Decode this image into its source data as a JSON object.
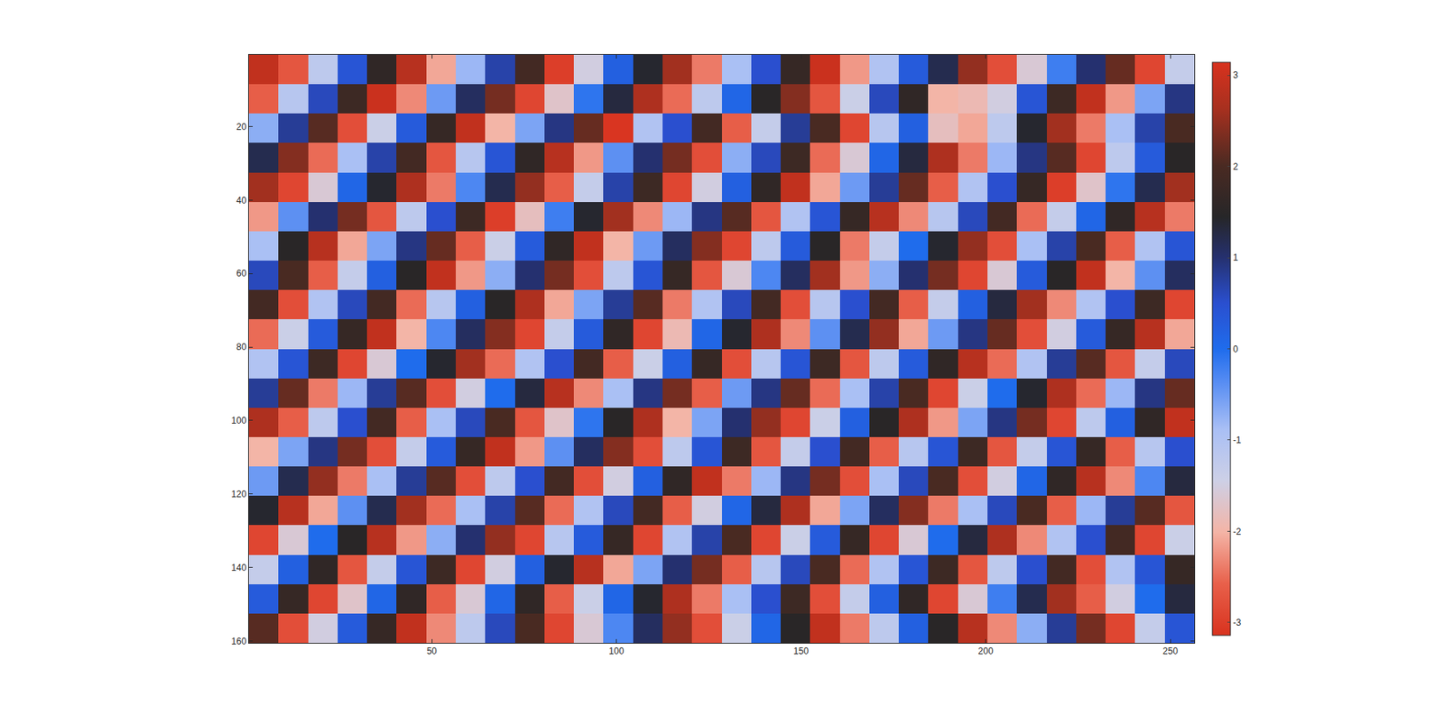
{
  "chart_data": {
    "type": "heatmap",
    "x": [
      4.5,
      12.5,
      20.5,
      28.5,
      36.5,
      44.5,
      52.5,
      60.5,
      68.5,
      76.5,
      84.5,
      92.5,
      100.5,
      108.5,
      116.5,
      124.5,
      132.5,
      140.5,
      148.5,
      156.5,
      164.5,
      172.5,
      180.5,
      188.5,
      196.5,
      204.5,
      212.5,
      220.5,
      228.5,
      236.5,
      244.5,
      252.5
    ],
    "y": [
      4.5,
      12.5,
      20.5,
      28.5,
      36.5,
      44.5,
      52.5,
      60.5,
      68.5,
      76.5,
      84.5,
      92.5,
      100.5,
      108.5,
      116.5,
      124.5,
      132.5,
      140.5,
      148.5,
      156.5
    ],
    "z": [
      [
        2.9,
        -2.7,
        -1.2,
        0.4,
        1.6,
        2.8,
        -2.1,
        -0.8,
        0.7,
        1.9,
        -3.0,
        -1.5,
        0.2,
        1.4,
        2.6,
        -2.4,
        -0.9,
        0.5,
        1.7,
        3.0,
        -2.2,
        -1.0,
        0.3,
        1.2,
        2.5,
        -2.8,
        -1.6,
        -0.2,
        1.0,
        2.2,
        -2.9,
        -1.3
      ],
      [
        -2.6,
        -1.1,
        0.6,
        1.8,
        3.0,
        -2.3,
        -0.5,
        1.1,
        2.3,
        -2.9,
        -1.7,
        -0.1,
        1.3,
        2.7,
        -2.5,
        -1.2,
        0.1,
        1.5,
        2.4,
        -2.7,
        -1.4,
        0.6,
        1.6,
        -2.0,
        -1.9,
        -1.5,
        0.4,
        1.8,
        2.9,
        -2.2,
        -0.6,
        0.9
      ],
      [
        -0.7,
        0.8,
        2.1,
        -2.8,
        -1.4,
        0.3,
        1.7,
        2.9,
        -2.0,
        -0.6,
        0.9,
        2.2,
        -3.1,
        -1.0,
        0.5,
        1.9,
        -2.6,
        -1.3,
        0.8,
        2.0,
        -2.9,
        -1.1,
        0.2,
        -1.8,
        -2.1,
        -1.2,
        1.4,
        2.6,
        -2.4,
        -0.9,
        0.7,
        2.0
      ],
      [
        1.2,
        2.4,
        -2.5,
        -0.9,
        0.7,
        1.9,
        -2.7,
        -1.1,
        0.4,
        1.6,
        2.8,
        -2.2,
        -0.4,
        1.0,
        2.3,
        -2.8,
        -0.7,
        0.6,
        1.8,
        -2.5,
        -1.6,
        0.1,
        1.3,
        2.7,
        -2.4,
        -0.8,
        0.9,
        2.1,
        -2.9,
        -1.2,
        0.3,
        1.5
      ],
      [
        2.6,
        -2.9,
        -1.6,
        0.1,
        1.4,
        2.7,
        -2.4,
        -0.3,
        1.2,
        2.5,
        -2.6,
        -1.3,
        0.7,
        1.8,
        -2.9,
        -1.5,
        0.2,
        1.6,
        2.9,
        -2.1,
        -0.5,
        0.8,
        2.2,
        -2.6,
        -1.0,
        0.5,
        1.7,
        -3.0,
        -1.7,
        -0.1,
        1.2,
        2.6
      ],
      [
        -2.2,
        -0.4,
        1.0,
        2.3,
        -2.7,
        -1.2,
        0.5,
        1.8,
        -3.0,
        -1.8,
        -0.2,
        1.4,
        2.6,
        -2.3,
        -0.8,
        0.9,
        2.1,
        -2.7,
        -1.0,
        0.4,
        1.7,
        2.8,
        -2.3,
        -1.1,
        0.6,
        1.9,
        -2.5,
        -1.3,
        0.1,
        1.6,
        2.8,
        -2.4
      ],
      [
        -0.9,
        1.5,
        2.8,
        -2.1,
        -0.6,
        0.9,
        2.2,
        -2.6,
        -1.4,
        0.3,
        1.6,
        2.9,
        -2.0,
        -0.5,
        1.1,
        2.4,
        -2.9,
        -1.2,
        0.3,
        1.5,
        -2.4,
        -1.3,
        0.0,
        1.4,
        2.5,
        -2.8,
        -0.9,
        0.7,
        2.0,
        -2.6,
        -1.0,
        0.4
      ],
      [
        0.6,
        2.0,
        -2.6,
        -1.3,
        0.2,
        1.5,
        2.9,
        -2.2,
        -0.7,
        1.0,
        2.3,
        -2.8,
        -1.2,
        0.4,
        1.7,
        -2.7,
        -1.6,
        -0.3,
        1.1,
        2.6,
        -2.2,
        -0.7,
        1.0,
        2.3,
        -2.9,
        -1.6,
        0.3,
        1.5,
        2.9,
        -2.0,
        -0.4,
        1.1
      ],
      [
        1.9,
        -2.8,
        -1.0,
        0.6,
        1.9,
        -2.5,
        -1.1,
        0.2,
        1.5,
        2.7,
        -2.1,
        -0.6,
        0.8,
        2.1,
        -2.4,
        -1.0,
        0.6,
        1.9,
        -2.8,
        -1.1,
        0.5,
        1.9,
        -2.6,
        -1.3,
        0.2,
        1.3,
        2.6,
        -2.3,
        -1.0,
        0.5,
        1.8,
        -2.9
      ],
      [
        -2.5,
        -1.4,
        0.3,
        1.7,
        2.9,
        -2.0,
        -0.3,
        1.1,
        2.4,
        -2.9,
        -1.3,
        0.3,
        1.6,
        -2.9,
        -1.9,
        0.1,
        1.4,
        2.7,
        -2.3,
        -0.4,
        1.2,
        2.5,
        -2.1,
        -0.5,
        0.9,
        2.2,
        -2.8,
        -1.5,
        0.3,
        1.7,
        2.8,
        -2.1
      ],
      [
        -1.0,
        0.4,
        1.8,
        -2.9,
        -1.6,
        0.0,
        1.4,
        2.6,
        -2.5,
        -1.0,
        0.5,
        1.9,
        -2.6,
        -1.4,
        0.2,
        1.7,
        -2.8,
        -1.1,
        0.4,
        1.8,
        -2.7,
        -1.2,
        0.3,
        1.6,
        2.8,
        -2.5,
        -1.0,
        0.8,
        2.1,
        -2.7,
        -1.3,
        0.6
      ],
      [
        0.8,
        2.2,
        -2.4,
        -0.8,
        0.8,
        2.1,
        -2.8,
        -1.5,
        0.0,
        1.3,
        2.8,
        -2.3,
        -0.9,
        0.9,
        2.3,
        -2.6,
        -0.5,
        0.9,
        2.2,
        -2.5,
        -0.9,
        0.7,
        2.0,
        -2.9,
        -1.4,
        0.0,
        1.4,
        2.7,
        -2.5,
        -0.8,
        0.9,
        2.2
      ],
      [
        2.7,
        -2.6,
        -1.2,
        0.5,
        1.9,
        -2.6,
        -0.9,
        0.6,
        2.0,
        -2.7,
        -1.7,
        -0.1,
        1.5,
        2.7,
        -2.0,
        -0.6,
        1.0,
        2.5,
        -2.9,
        -1.4,
        0.2,
        1.5,
        2.7,
        -2.2,
        -0.6,
        0.9,
        2.3,
        -2.9,
        -1.2,
        0.2,
        1.6,
        2.9
      ],
      [
        -2.0,
        -0.6,
        0.9,
        2.3,
        -2.8,
        -1.3,
        0.3,
        1.7,
        2.9,
        -2.2,
        -0.4,
        1.1,
        2.4,
        -2.8,
        -1.2,
        0.4,
        1.8,
        -2.7,
        -1.3,
        0.5,
        1.9,
        -2.6,
        -1.1,
        0.4,
        1.8,
        -2.7,
        -1.3,
        0.4,
        1.7,
        -2.6,
        -1.1,
        0.5
      ],
      [
        -0.5,
        1.2,
        2.5,
        -2.4,
        -0.9,
        0.8,
        2.1,
        -2.8,
        -1.2,
        0.5,
        1.9,
        -2.8,
        -1.5,
        0.2,
        1.6,
        2.9,
        -2.4,
        -0.8,
        0.9,
        2.3,
        -2.8,
        -0.9,
        0.6,
        2.0,
        -2.8,
        -1.5,
        0.1,
        1.6,
        2.8,
        -2.3,
        -0.3,
        1.3
      ],
      [
        1.4,
        2.8,
        -2.1,
        -0.4,
        1.2,
        2.6,
        -2.5,
        -0.9,
        0.7,
        2.1,
        -2.5,
        -1.0,
        0.6,
        1.9,
        -2.6,
        -1.5,
        0.1,
        1.3,
        2.7,
        -2.1,
        -0.6,
        1.1,
        2.4,
        -2.4,
        -0.9,
        0.6,
        2.0,
        -2.6,
        -0.8,
        0.8,
        2.1,
        -2.7
      ],
      [
        -2.9,
        -1.6,
        0.0,
        1.5,
        2.8,
        -2.2,
        -0.7,
        1.0,
        2.5,
        -2.9,
        -1.1,
        0.3,
        1.7,
        -2.9,
        -1.0,
        0.7,
        2.0,
        -2.9,
        -1.4,
        0.3,
        1.7,
        -2.9,
        -1.6,
        0.0,
        1.3,
        2.7,
        -2.3,
        -1.0,
        0.5,
        1.9,
        -2.9,
        -1.4
      ],
      [
        -1.3,
        0.2,
        1.6,
        -2.7,
        -1.3,
        0.4,
        1.8,
        -2.9,
        -1.5,
        0.2,
        1.4,
        2.8,
        -2.1,
        -0.6,
        1.0,
        2.3,
        -2.6,
        -1.1,
        0.6,
        2.0,
        -2.5,
        -1.0,
        0.4,
        1.8,
        -2.7,
        -1.2,
        0.5,
        1.9,
        -2.8,
        -1.0,
        0.4,
        1.7
      ],
      [
        0.3,
        1.7,
        -2.9,
        -1.7,
        0.1,
        1.6,
        -2.6,
        -1.6,
        0.1,
        1.6,
        -2.6,
        -1.4,
        0.1,
        1.4,
        2.7,
        -2.4,
        -0.9,
        0.5,
        1.8,
        -2.8,
        -1.3,
        0.2,
        1.6,
        -2.9,
        -1.6,
        -0.2,
        1.2,
        2.6,
        -2.6,
        -1.5,
        0.0,
        1.3
      ],
      [
        2.1,
        -2.8,
        -1.5,
        0.3,
        1.7,
        2.9,
        -2.3,
        -1.2,
        0.6,
        2.0,
        -2.9,
        -1.6,
        -0.3,
        1.1,
        2.5,
        -2.8,
        -1.4,
        0.1,
        1.5,
        2.9,
        -2.4,
        -1.2,
        0.2,
        1.5,
        2.8,
        -2.3,
        -0.7,
        0.8,
        2.3,
        -2.9,
        -1.3,
        0.4
      ]
    ],
    "xlim": [
      0.5,
      256.5
    ],
    "xticks": [
      50,
      100,
      150,
      200,
      250
    ],
    "ylim": [
      160.5,
      0.5
    ],
    "yticks": [
      20,
      40,
      60,
      80,
      100,
      120,
      140,
      160
    ],
    "zlim": [
      -3.1416,
      3.1416
    ],
    "zticks": [
      -3,
      -2,
      -1,
      0,
      1,
      2,
      3
    ]
  }
}
